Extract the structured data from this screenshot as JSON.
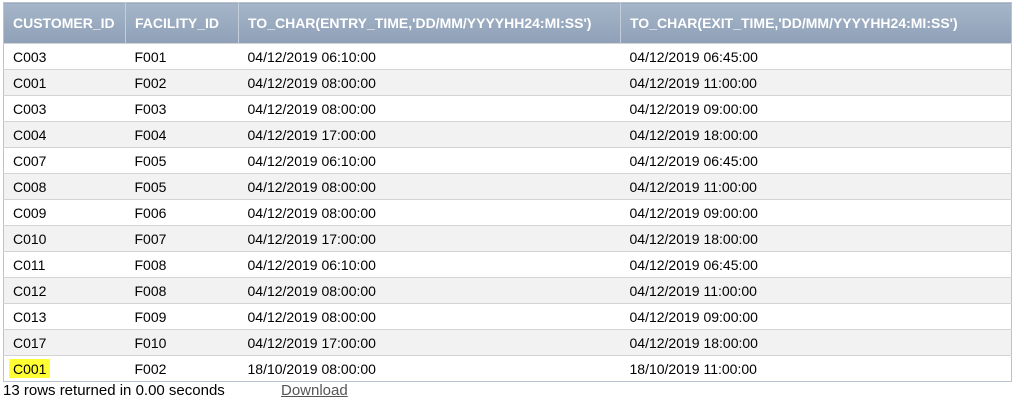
{
  "results": {
    "columns": [
      "CUSTOMER_ID",
      "FACILITY_ID",
      "TO_CHAR(ENTRY_TIME,'DD/MM/YYYYHH24:MI:SS')",
      "TO_CHAR(EXIT_TIME,'DD/MM/YYYYHH24:MI:SS')"
    ],
    "rows": [
      [
        "C003",
        "F001",
        "04/12/2019 06:10:00",
        "04/12/2019 06:45:00"
      ],
      [
        "C001",
        "F002",
        "04/12/2019 08:00:00",
        "04/12/2019 11:00:00"
      ],
      [
        "C003",
        "F003",
        "04/12/2019 08:00:00",
        "04/12/2019 09:00:00"
      ],
      [
        "C004",
        "F004",
        "04/12/2019 17:00:00",
        "04/12/2019 18:00:00"
      ],
      [
        "C007",
        "F005",
        "04/12/2019 06:10:00",
        "04/12/2019 06:45:00"
      ],
      [
        "C008",
        "F005",
        "04/12/2019 08:00:00",
        "04/12/2019 11:00:00"
      ],
      [
        "C009",
        "F006",
        "04/12/2019 08:00:00",
        "04/12/2019 09:00:00"
      ],
      [
        "C010",
        "F007",
        "04/12/2019 17:00:00",
        "04/12/2019 18:00:00"
      ],
      [
        "C011",
        "F008",
        "04/12/2019 06:10:00",
        "04/12/2019 06:45:00"
      ],
      [
        "C012",
        "F008",
        "04/12/2019 08:00:00",
        "04/12/2019 11:00:00"
      ],
      [
        "C013",
        "F009",
        "04/12/2019 08:00:00",
        "04/12/2019 09:00:00"
      ],
      [
        "C017",
        "F010",
        "04/12/2019 17:00:00",
        "04/12/2019 18:00:00"
      ],
      [
        "C001",
        "F002",
        "18/10/2019 08:00:00",
        "18/10/2019 11:00:00"
      ]
    ],
    "highlight": {
      "row": 12,
      "col": 0,
      "color": "#ffff33"
    }
  },
  "footer": {
    "status": "13 rows returned in 0.00 seconds",
    "download_label": "Download"
  },
  "colors": {
    "header_bg": "#97a8bf",
    "header_text": "#ffffff",
    "row_alt": "#f2f2f2"
  }
}
